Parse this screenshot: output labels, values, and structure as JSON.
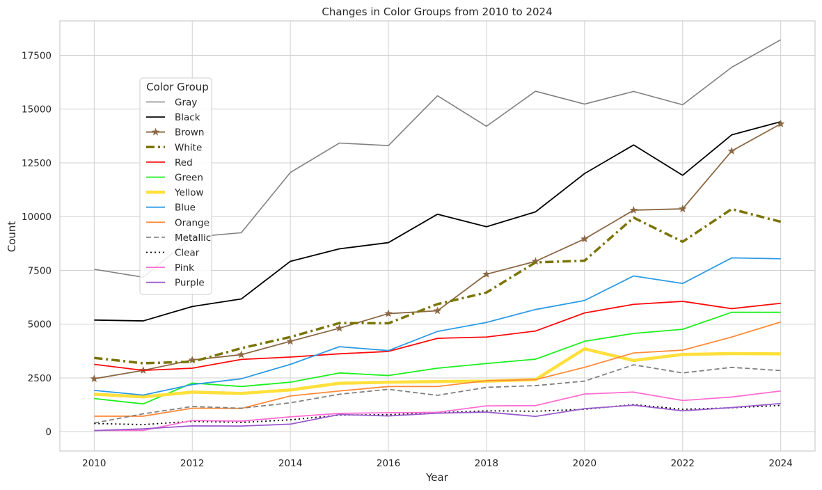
{
  "chart_data": {
    "type": "line",
    "title": "Changes in Color Groups from 2010 to 2024",
    "xlabel": "Year",
    "ylabel": "Count",
    "x": [
      2010,
      2011,
      2012,
      2013,
      2014,
      2015,
      2016,
      2017,
      2018,
      2019,
      2020,
      2021,
      2022,
      2023,
      2024
    ],
    "x_ticks": [
      "2010",
      "2012",
      "2014",
      "2016",
      "2018",
      "2020",
      "2022",
      "2024"
    ],
    "y_ticks": [
      "0",
      "2500",
      "5000",
      "7500",
      "10000",
      "12500",
      "15000",
      "17500"
    ],
    "xlim": [
      2009.3,
      2024.7
    ],
    "ylim": [
      -900,
      19100
    ],
    "grid": true,
    "legend_title": "Color Group",
    "legend_position": "upper-left",
    "series": [
      {
        "name": "Gray",
        "color": "#808080",
        "width": 1.6,
        "dash": "",
        "marker": "",
        "values": [
          7550,
          7180,
          9050,
          9250,
          12050,
          13420,
          13300,
          15620,
          14200,
          15830,
          15230,
          15820,
          15200,
          16940,
          18220
        ]
      },
      {
        "name": "Black",
        "color": "#000000",
        "width": 1.8,
        "dash": "",
        "marker": "",
        "values": [
          5190,
          5150,
          5820,
          6170,
          7920,
          8500,
          8790,
          10110,
          9530,
          10220,
          12000,
          13330,
          11920,
          13800,
          14410
        ]
      },
      {
        "name": "Brown",
        "color": "#8b6844",
        "width": 1.8,
        "dash": "",
        "marker": "star",
        "values": [
          2460,
          2850,
          3330,
          3580,
          4200,
          4810,
          5490,
          5620,
          7320,
          7920,
          8960,
          10300,
          10360,
          13050,
          14310
        ]
      },
      {
        "name": "White",
        "color": "#7a7406",
        "width": 3.5,
        "dash": "12,5,3,5",
        "marker": "",
        "values": [
          3430,
          3180,
          3250,
          3880,
          4400,
          5050,
          5040,
          5930,
          6470,
          7870,
          7950,
          9950,
          8830,
          10350,
          9760
        ]
      },
      {
        "name": "Red",
        "color": "#ff0a0a",
        "width": 1.8,
        "dash": "",
        "marker": "",
        "values": [
          3130,
          2850,
          2950,
          3360,
          3470,
          3620,
          3730,
          4340,
          4400,
          4680,
          5520,
          5920,
          6060,
          5720,
          5970
        ]
      },
      {
        "name": "Green",
        "color": "#1cf01c",
        "width": 1.8,
        "dash": "",
        "marker": "",
        "values": [
          1540,
          1290,
          2260,
          2100,
          2300,
          2730,
          2610,
          2950,
          3170,
          3370,
          4200,
          4570,
          4760,
          5550,
          5550
        ]
      },
      {
        "name": "Yellow",
        "color": "#ffe03c",
        "width": 4.5,
        "dash": "",
        "marker": "",
        "values": [
          1740,
          1620,
          1840,
          1780,
          1940,
          2250,
          2300,
          2330,
          2350,
          2420,
          3850,
          3310,
          3590,
          3630,
          3620
        ]
      },
      {
        "name": "Blue",
        "color": "#2d9be6",
        "width": 1.8,
        "dash": "",
        "marker": "",
        "values": [
          1920,
          1700,
          2190,
          2460,
          3130,
          3950,
          3770,
          4660,
          5080,
          5680,
          6100,
          7240,
          6890,
          8080,
          8040
        ]
      },
      {
        "name": "Orange",
        "color": "#ff8c3a",
        "width": 1.8,
        "dash": "",
        "marker": "",
        "values": [
          720,
          720,
          1090,
          1080,
          1660,
          1890,
          2100,
          2100,
          2370,
          2420,
          2990,
          3660,
          3790,
          4400,
          5100
        ]
      },
      {
        "name": "Metallic",
        "color": "#808080",
        "width": 1.8,
        "dash": "7,4",
        "marker": "",
        "values": [
          400,
          830,
          1170,
          1090,
          1340,
          1740,
          1970,
          1690,
          2060,
          2140,
          2350,
          3110,
          2730,
          2990,
          2840
        ]
      },
      {
        "name": "Clear",
        "color": "#000000",
        "width": 1.8,
        "dash": "2,4",
        "marker": "",
        "values": [
          380,
          330,
          480,
          430,
          550,
          770,
          790,
          880,
          970,
          950,
          1040,
          1260,
          1040,
          1110,
          1220
        ]
      },
      {
        "name": "Pink",
        "color": "#ff6ed2",
        "width": 1.8,
        "dash": "",
        "marker": "",
        "values": [
          60,
          60,
          520,
          490,
          690,
          850,
          880,
          900,
          1200,
          1210,
          1750,
          1840,
          1450,
          1610,
          1890
        ]
      },
      {
        "name": "Purple",
        "color": "#9a5ccc",
        "width": 1.8,
        "dash": "",
        "marker": "",
        "values": [
          50,
          130,
          270,
          260,
          350,
          800,
          730,
          860,
          910,
          710,
          1070,
          1230,
          970,
          1120,
          1310
        ]
      }
    ]
  }
}
